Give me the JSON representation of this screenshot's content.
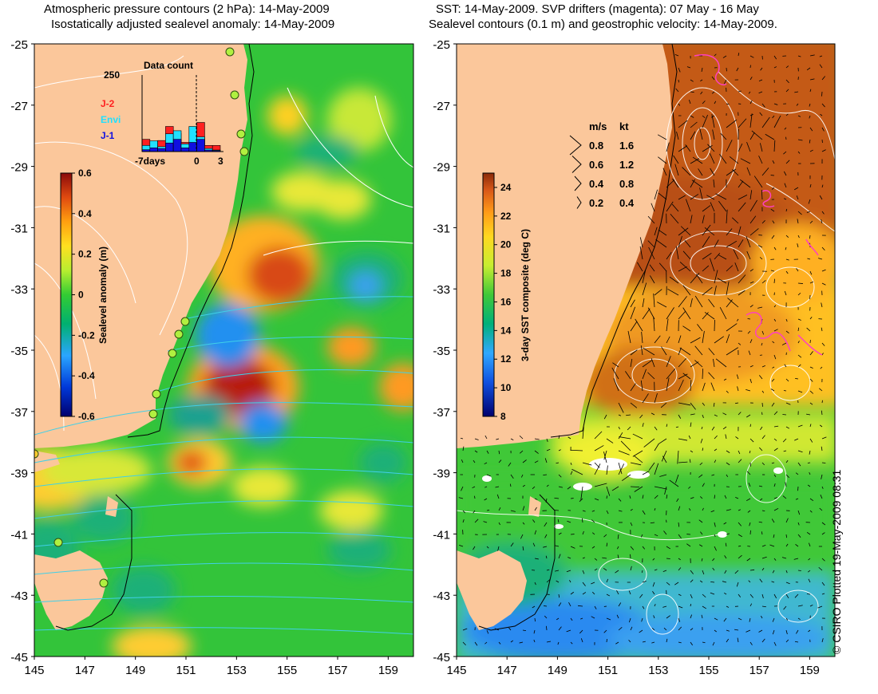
{
  "left_panel": {
    "title_line1": "Atmospheric pressure contours (2 hPa): 14-May-2009",
    "title_line2": "Isostatically adjusted sealevel anomaly: 14-May-2009",
    "y_ticks": [
      "-25",
      "-27",
      "-29",
      "-31",
      "-33",
      "-35",
      "-37",
      "-39",
      "-41",
      "-43",
      "-45"
    ],
    "x_ticks": [
      "145",
      "147",
      "149",
      "151",
      "153",
      "155",
      "157",
      "159"
    ],
    "colorbar": {
      "label": "Sealevel anomaly (m)",
      "ticks": [
        "0.6",
        "0.4",
        "0.2",
        "0",
        "-0.2",
        "-0.4",
        "-0.6"
      ],
      "range": [
        -0.6,
        0.6
      ]
    },
    "inset": {
      "title": "Data count",
      "ymax_label": "250",
      "x_labels": [
        "-7days",
        "0",
        "3"
      ],
      "legend": [
        {
          "label": "J-2",
          "color": "#ff2020"
        },
        {
          "label": "Envi",
          "color": "#20e0ff"
        },
        {
          "label": "J-1",
          "color": "#1010e0"
        }
      ],
      "bars": [
        {
          "day": -7,
          "j2": 40,
          "envi": 20,
          "j1": 6
        },
        {
          "day": -6,
          "j2": 20,
          "envi": 35,
          "j1": 12
        },
        {
          "day": -5,
          "j2": 36,
          "envi": 16,
          "j1": 10
        },
        {
          "day": -4,
          "j2": 82,
          "envi": 58,
          "j1": 28
        },
        {
          "day": -3,
          "j2": 60,
          "envi": 68,
          "j1": 40
        },
        {
          "day": -2,
          "j2": 30,
          "envi": 25,
          "j1": 12
        },
        {
          "day": -1,
          "j2": 68,
          "envi": 82,
          "j1": 30
        },
        {
          "day": 0,
          "j2": 95,
          "envi": 48,
          "j1": 40
        },
        {
          "day": 1,
          "j2": 20,
          "envi": 10,
          "j1": 5
        },
        {
          "day": 2,
          "j2": 20,
          "envi": 5,
          "j1": 3
        }
      ]
    }
  },
  "right_panel": {
    "title_line1": "SST: 14-May-2009. SVP drifters (magenta): 07 May - 16 May",
    "title_line2": "Sealevel contours (0.1 m) and geostrophic velocity: 14-May-2009.",
    "y_ticks": [
      "-25",
      "-27",
      "-29",
      "-31",
      "-33",
      "-35",
      "-37",
      "-39",
      "-41",
      "-43",
      "-45"
    ],
    "x_ticks": [
      "145",
      "147",
      "149",
      "151",
      "153",
      "155",
      "157",
      "159"
    ],
    "colorbar": {
      "label": "3-day SST composite (deg C)",
      "ticks": [
        "24",
        "22",
        "20",
        "18",
        "16",
        "14",
        "12",
        "10",
        "8"
      ],
      "range": [
        8,
        25
      ]
    },
    "velocity_legend": {
      "header_ms": "m/s",
      "header_kt": "kt",
      "rows": [
        {
          "ms": "0.8",
          "kt": "1.6"
        },
        {
          "ms": "0.6",
          "kt": "1.2"
        },
        {
          "ms": "0.4",
          "kt": "0.8"
        },
        {
          "ms": "0.2",
          "kt": "0.4"
        }
      ]
    }
  },
  "copyright": "© CSIRO Plotted 19-May-2009 08:31",
  "colors": {
    "land": "#fbc79b",
    "coast": "#000000",
    "pressure_contour": "#ffffff",
    "isobar_cyan": "#40d0e8",
    "ssh_contour": "#ffffff",
    "drifter": "#ff40c0",
    "station": "#b0f040"
  }
}
